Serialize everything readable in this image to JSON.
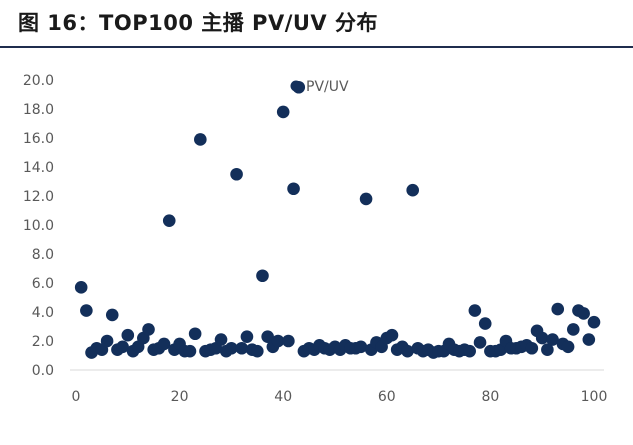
{
  "figure_title": "图 16：TOP100 主播 PV/UV 分布",
  "colors": {
    "marker": "#132f5a",
    "tick_text": "#595959",
    "axis_line": "#d9d9d9",
    "title_rule": "#1f2d4d"
  },
  "chart_data": {
    "type": "scatter",
    "title": "",
    "xlabel": "",
    "ylabel": "",
    "xlim": [
      0,
      100
    ],
    "ylim": [
      0,
      20
    ],
    "x_ticks": [
      "0",
      "20",
      "40",
      "60",
      "80",
      "100"
    ],
    "y_ticks": [
      "0.0",
      "2.0",
      "4.0",
      "6.0",
      "8.0",
      "10.0",
      "12.0",
      "14.0",
      "16.0",
      "18.0",
      "20.0"
    ],
    "grid": false,
    "legend_position": "top",
    "series": [
      {
        "name": "PV/UV",
        "points": [
          [
            1,
            5.7
          ],
          [
            2,
            4.1
          ],
          [
            3,
            1.2
          ],
          [
            4,
            1.5
          ],
          [
            5,
            1.4
          ],
          [
            6,
            2.0
          ],
          [
            7,
            3.8
          ],
          [
            8,
            1.4
          ],
          [
            9,
            1.6
          ],
          [
            10,
            2.4
          ],
          [
            11,
            1.3
          ],
          [
            12,
            1.6
          ],
          [
            13,
            2.2
          ],
          [
            14,
            2.8
          ],
          [
            15,
            1.4
          ],
          [
            16,
            1.5
          ],
          [
            17,
            1.8
          ],
          [
            18,
            10.3
          ],
          [
            19,
            1.4
          ],
          [
            20,
            1.8
          ],
          [
            21,
            1.3
          ],
          [
            22,
            1.3
          ],
          [
            23,
            2.5
          ],
          [
            24,
            15.9
          ],
          [
            25,
            1.3
          ],
          [
            26,
            1.4
          ],
          [
            27,
            1.5
          ],
          [
            28,
            2.1
          ],
          [
            29,
            1.3
          ],
          [
            30,
            1.5
          ],
          [
            31,
            13.5
          ],
          [
            32,
            1.5
          ],
          [
            33,
            2.3
          ],
          [
            34,
            1.4
          ],
          [
            35,
            1.3
          ],
          [
            36,
            6.5
          ],
          [
            37,
            2.3
          ],
          [
            38,
            1.6
          ],
          [
            39,
            2.0
          ],
          [
            40,
            17.8
          ],
          [
            41,
            2.0
          ],
          [
            42,
            12.5
          ],
          [
            43,
            19.5
          ],
          [
            44,
            1.3
          ],
          [
            45,
            1.5
          ],
          [
            46,
            1.4
          ],
          [
            47,
            1.7
          ],
          [
            48,
            1.5
          ],
          [
            49,
            1.4
          ],
          [
            50,
            1.6
          ],
          [
            51,
            1.4
          ],
          [
            52,
            1.7
          ],
          [
            53,
            1.5
          ],
          [
            54,
            1.5
          ],
          [
            55,
            1.6
          ],
          [
            56,
            11.8
          ],
          [
            57,
            1.4
          ],
          [
            58,
            1.9
          ],
          [
            59,
            1.6
          ],
          [
            60,
            2.2
          ],
          [
            61,
            2.4
          ],
          [
            62,
            1.4
          ],
          [
            63,
            1.6
          ],
          [
            64,
            1.3
          ],
          [
            65,
            12.4
          ],
          [
            66,
            1.5
          ],
          [
            67,
            1.3
          ],
          [
            68,
            1.4
          ],
          [
            69,
            1.2
          ],
          [
            70,
            1.3
          ],
          [
            71,
            1.3
          ],
          [
            72,
            1.8
          ],
          [
            73,
            1.4
          ],
          [
            74,
            1.3
          ],
          [
            75,
            1.4
          ],
          [
            76,
            1.3
          ],
          [
            77,
            4.1
          ],
          [
            78,
            1.9
          ],
          [
            79,
            3.2
          ],
          [
            80,
            1.3
          ],
          [
            81,
            1.3
          ],
          [
            82,
            1.4
          ],
          [
            83,
            2.0
          ],
          [
            84,
            1.5
          ],
          [
            85,
            1.5
          ],
          [
            86,
            1.6
          ],
          [
            87,
            1.7
          ],
          [
            88,
            1.5
          ],
          [
            89,
            2.7
          ],
          [
            90,
            2.2
          ],
          [
            91,
            1.4
          ],
          [
            92,
            2.1
          ],
          [
            93,
            4.2
          ],
          [
            94,
            1.8
          ],
          [
            95,
            1.6
          ],
          [
            96,
            2.8
          ],
          [
            97,
            4.1
          ],
          [
            98,
            3.9
          ],
          [
            99,
            2.1
          ],
          [
            100,
            3.3
          ]
        ]
      }
    ]
  }
}
